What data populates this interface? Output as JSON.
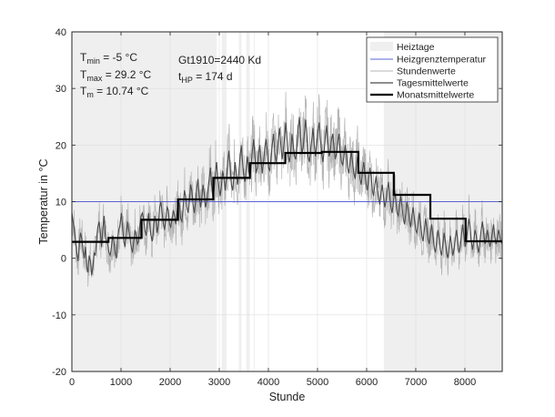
{
  "chart_data": {
    "type": "line",
    "xlabel": "Stunde",
    "ylabel": "Temperatur in °C",
    "xlim": [
      0,
      8760
    ],
    "ylim": [
      -20,
      40
    ],
    "xticks": [
      0,
      1000,
      2000,
      3000,
      4000,
      5000,
      6000,
      7000,
      8000
    ],
    "yticks": [
      -20,
      -10,
      0,
      10,
      20,
      30,
      40
    ],
    "grid": true,
    "legend_placement": "top-right",
    "colors": {
      "heiztage": "#efefef",
      "heizgrenze": "#5a63d6",
      "stundenwerte": "#b4b4b4",
      "tageswerte": "#4a4a4a",
      "monatswerte": "#000000"
    },
    "legend": [
      {
        "key": "heiztage",
        "label": "Heiztage"
      },
      {
        "key": "heizgrenze",
        "label": "Heizgrenztemperatur"
      },
      {
        "key": "stundenwerte",
        "label": "Stundenwerte"
      },
      {
        "key": "tageswerte",
        "label": "Tagesmittelwerte"
      },
      {
        "key": "monatswerte",
        "label": "Monatsmittelwerte"
      }
    ],
    "heizgrenztemperatur": 10,
    "heating_periods": [
      [
        0,
        2950
      ],
      [
        3050,
        3150
      ],
      [
        3400,
        3450
      ],
      [
        3550,
        3620
      ],
      [
        3700,
        3720
      ],
      [
        6350,
        8760
      ]
    ],
    "monthly_means": [
      {
        "x0": 0,
        "x1": 744,
        "y": 2.9
      },
      {
        "x0": 744,
        "x1": 1416,
        "y": 3.6
      },
      {
        "x0": 1416,
        "x1": 2160,
        "y": 6.8
      },
      {
        "x0": 2160,
        "x1": 2880,
        "y": 10.4
      },
      {
        "x0": 2880,
        "x1": 3624,
        "y": 14.2
      },
      {
        "x0": 3624,
        "x1": 4344,
        "y": 16.8
      },
      {
        "x0": 4344,
        "x1": 5088,
        "y": 18.6
      },
      {
        "x0": 5088,
        "x1": 5832,
        "y": 18.8
      },
      {
        "x0": 5832,
        "x1": 6552,
        "y": 15.1
      },
      {
        "x0": 6552,
        "x1": 7296,
        "y": 11.2
      },
      {
        "x0": 7296,
        "x1": 8016,
        "y": 7.0
      },
      {
        "x0": 8016,
        "x1": 8760,
        "y": 3.0
      }
    ],
    "daily_means": [
      8.0,
      6.5,
      5.0,
      3.0,
      1.0,
      -0.5,
      2.5,
      4.5,
      3.5,
      1.5,
      0.0,
      2.0,
      -1.5,
      -2.5,
      0.5,
      -0.5,
      -3.0,
      -1.5,
      1.0,
      0.5,
      3.5,
      5.5,
      6.5,
      4.5,
      2.0,
      5.0,
      7.5,
      4.0,
      3.0,
      2.5,
      1.0,
      0.5,
      2.0,
      4.0,
      3.0,
      1.0,
      0.0,
      3.5,
      5.0,
      6.0,
      8.0,
      5.5,
      3.0,
      2.0,
      4.0,
      6.5,
      5.0,
      3.5,
      2.0,
      1.0,
      3.0,
      5.0,
      4.0,
      2.5,
      3.0,
      6.0,
      7.5,
      8.0,
      7.0,
      5.0,
      4.0,
      6.0,
      8.0,
      6.0,
      4.0,
      3.0,
      5.0,
      7.5,
      6.5,
      4.5,
      6.0,
      9.0,
      10.0,
      8.0,
      6.0,
      5.0,
      7.0,
      9.0,
      8.5,
      6.0,
      5.5,
      7.0,
      8.5,
      7.5,
      6.0,
      8.0,
      10.5,
      9.5,
      7.0,
      6.5,
      9.0,
      12.0,
      11.0,
      9.0,
      8.0,
      10.0,
      13.0,
      12.0,
      9.5,
      8.0,
      10.0,
      12.5,
      14.0,
      11.0,
      9.0,
      10.5,
      13.0,
      11.5,
      9.0,
      10.0,
      12.0,
      14.0,
      16.0,
      13.0,
      11.0,
      12.0,
      15.0,
      17.0,
      14.0,
      12.5,
      11.0,
      13.0,
      15.5,
      14.0,
      12.0,
      14.0,
      17.0,
      19.0,
      16.0,
      13.0,
      12.0,
      14.5,
      17.0,
      15.0,
      13.0,
      15.0,
      18.0,
      20.0,
      17.0,
      14.5,
      13.5,
      16.0,
      18.0,
      15.5,
      14.0,
      16.5,
      19.0,
      21.0,
      18.0,
      15.0,
      16.0,
      18.5,
      20.0,
      17.0,
      15.0,
      17.0,
      19.5,
      21.0,
      19.0,
      16.0,
      15.5,
      17.5,
      20.0,
      22.0,
      19.0,
      17.0,
      18.5,
      21.0,
      23.0,
      20.0,
      17.5,
      19.0,
      21.5,
      24.0,
      21.0,
      18.0,
      17.0,
      19.0,
      22.0,
      20.0,
      18.0,
      17.5,
      20.0,
      23.0,
      25.0,
      21.0,
      18.5,
      19.5,
      22.0,
      24.5,
      21.5,
      18.0,
      17.0,
      19.0,
      21.0,
      23.0,
      20.0,
      18.0,
      20.0,
      22.5,
      24.0,
      21.0,
      18.5,
      17.0,
      19.0,
      21.5,
      23.5,
      20.5,
      18.0,
      19.0,
      21.0,
      22.0,
      19.5,
      17.5,
      18.5,
      20.5,
      22.0,
      19.0,
      17.0,
      16.5,
      18.0,
      20.0,
      18.5,
      16.0,
      15.0,
      17.0,
      19.0,
      17.0,
      15.0,
      14.0,
      16.0,
      18.0,
      16.0,
      14.0,
      13.0,
      15.5,
      17.0,
      15.0,
      13.0,
      12.0,
      14.0,
      16.0,
      14.5,
      12.0,
      11.0,
      13.0,
      14.5,
      12.5,
      10.5,
      9.5,
      11.5,
      13.0,
      11.0,
      9.0,
      10.0,
      12.0,
      13.5,
      11.0,
      9.0,
      8.0,
      10.0,
      12.0,
      10.0,
      8.0,
      7.5,
      9.5,
      11.0,
      9.0,
      7.0,
      6.0,
      8.0,
      10.0,
      8.5,
      6.5,
      5.5,
      7.5,
      9.0,
      7.0,
      5.0,
      4.5,
      6.5,
      8.0,
      6.0,
      4.0,
      3.0,
      5.0,
      7.0,
      5.5,
      3.5,
      2.5,
      4.5,
      6.0,
      4.0,
      2.0,
      1.0,
      3.0,
      5.0,
      3.5,
      1.5,
      0.5,
      2.5,
      4.5,
      3.0,
      1.0,
      0.0,
      2.0,
      4.0,
      2.5,
      0.5,
      1.5,
      3.5,
      5.0,
      3.0,
      1.0,
      2.0,
      4.0,
      6.0,
      4.0,
      2.0,
      3.0,
      5.0,
      7.0,
      5.5,
      3.0,
      1.5,
      3.0,
      5.0,
      4.0,
      2.0,
      1.0,
      3.0,
      5.0,
      6.5,
      4.5,
      2.5,
      3.5,
      5.0,
      3.5,
      2.0,
      3.0,
      4.5,
      6.0,
      4.0,
      2.5,
      3.5,
      5.0,
      4.0,
      3.0,
      2.5
    ],
    "daily_means_span": [
      0,
      8760
    ]
  },
  "stats": {
    "tmin": {
      "base": "T",
      "sub": "min",
      "value": " = -5 °C"
    },
    "tmax": {
      "base": "T",
      "sub": "max",
      "value": " = 29.2 °C"
    },
    "tm": {
      "base": "T",
      "sub": "m",
      "value": " = 10.74 °C"
    },
    "gt": {
      "text": "Gt1910=2440 Kd"
    },
    "thp": {
      "base": "t",
      "sub": "HP",
      "value": " = 174 d"
    }
  }
}
